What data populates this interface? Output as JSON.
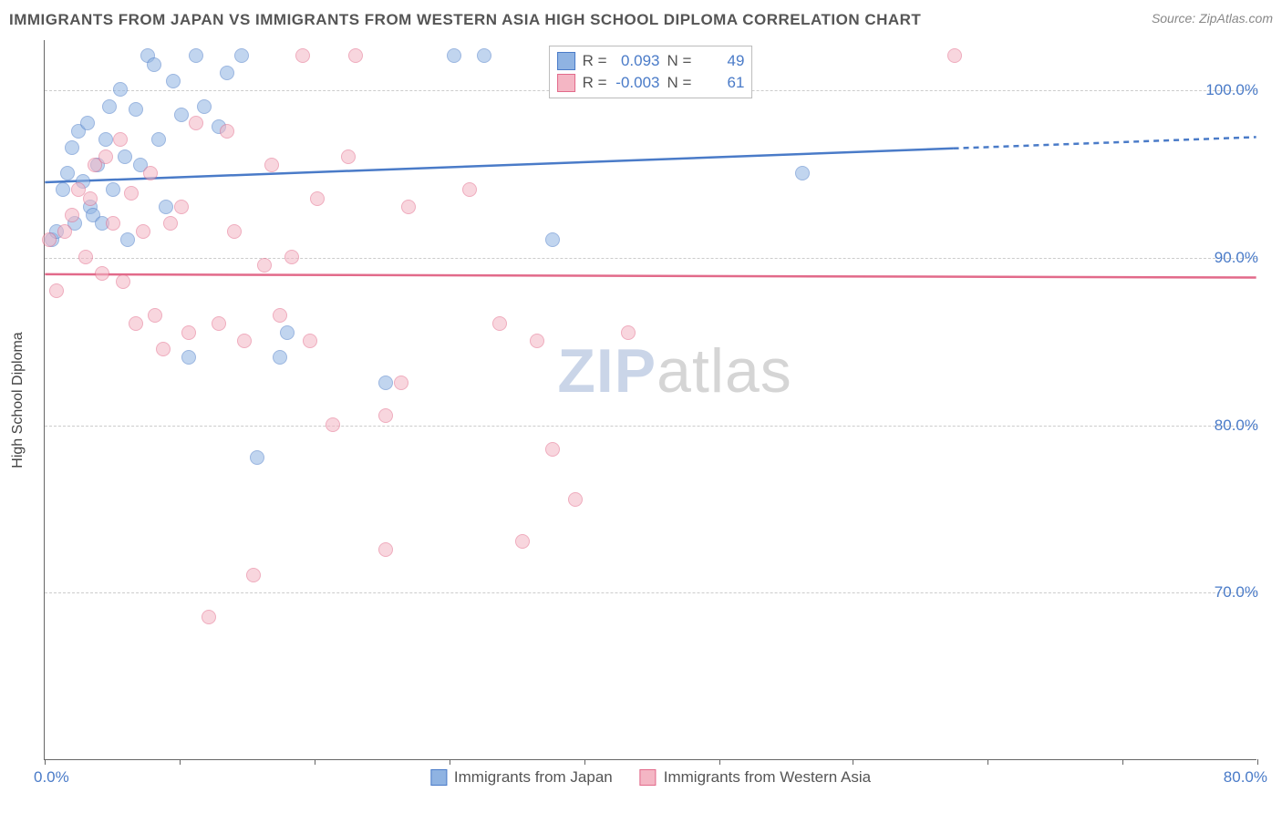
{
  "title": "IMMIGRANTS FROM JAPAN VS IMMIGRANTS FROM WESTERN ASIA HIGH SCHOOL DIPLOMA CORRELATION CHART",
  "source_prefix": "Source: ",
  "source_name": "ZipAtlas.com",
  "watermark_a": "ZIP",
  "watermark_b": "atlas",
  "y_axis_title": "High School Diploma",
  "chart": {
    "type": "scatter",
    "xlim": [
      0,
      80
    ],
    "ylim": [
      60,
      103
    ],
    "x_ticks": [
      0,
      8.9,
      17.8,
      26.7,
      35.6,
      44.5,
      53.3,
      62.2,
      71.1,
      80
    ],
    "x_tick_labels_shown": {
      "0": "0.0%",
      "80": "80.0%"
    },
    "y_ticks": [
      70,
      80,
      90,
      100
    ],
    "y_tick_labels": [
      "70.0%",
      "80.0%",
      "90.0%",
      "100.0%"
    ],
    "grid_color": "#cccccc",
    "axis_color": "#666666",
    "background_color": "#ffffff",
    "tick_label_color": "#4a7bc8",
    "tick_label_fontsize": 17,
    "axis_title_fontsize": 16,
    "marker_radius": 8,
    "marker_opacity": 0.55,
    "series": [
      {
        "id": "japan",
        "label": "Immigrants from Japan",
        "fill_color": "#8fb3e2",
        "stroke_color": "#4a7bc8",
        "r_value": "0.093",
        "n_value": "49",
        "trend": {
          "y_at_xmin": 94.5,
          "y_at_xmax": 97.2,
          "solid_until_x": 60,
          "line_width": 2.5
        },
        "points": [
          [
            0.5,
            91
          ],
          [
            0.8,
            91.5
          ],
          [
            1.2,
            94
          ],
          [
            1.5,
            95
          ],
          [
            1.8,
            96.5
          ],
          [
            2.0,
            92
          ],
          [
            2.2,
            97.5
          ],
          [
            2.5,
            94.5
          ],
          [
            2.8,
            98
          ],
          [
            3.0,
            93
          ],
          [
            3.2,
            92.5
          ],
          [
            3.5,
            95.5
          ],
          [
            3.8,
            92
          ],
          [
            4.0,
            97
          ],
          [
            4.3,
            99
          ],
          [
            4.5,
            94
          ],
          [
            5.0,
            100
          ],
          [
            5.3,
            96
          ],
          [
            5.5,
            91
          ],
          [
            6.0,
            98.8
          ],
          [
            6.3,
            95.5
          ],
          [
            6.8,
            102
          ],
          [
            7.2,
            101.5
          ],
          [
            7.5,
            97
          ],
          [
            8.0,
            93
          ],
          [
            8.5,
            100.5
          ],
          [
            9.0,
            98.5
          ],
          [
            9.5,
            84
          ],
          [
            10.0,
            102
          ],
          [
            10.5,
            99
          ],
          [
            11.5,
            97.8
          ],
          [
            12.0,
            101
          ],
          [
            13.0,
            102
          ],
          [
            15.5,
            84
          ],
          [
            16.0,
            85.5
          ],
          [
            14.0,
            78
          ],
          [
            22.5,
            82.5
          ],
          [
            27.0,
            102
          ],
          [
            29.0,
            102
          ],
          [
            33.5,
            91
          ],
          [
            35.0,
            102
          ],
          [
            38.0,
            102
          ],
          [
            42.5,
            102
          ],
          [
            50.0,
            95
          ]
        ]
      },
      {
        "id": "western-asia",
        "label": "Immigrants from Western Asia",
        "fill_color": "#f4b6c4",
        "stroke_color": "#e26a8a",
        "r_value": "-0.003",
        "n_value": "61",
        "trend": {
          "y_at_xmin": 89.0,
          "y_at_xmax": 88.8,
          "solid_until_x": 80,
          "line_width": 2.5
        },
        "points": [
          [
            0.3,
            91
          ],
          [
            0.8,
            88
          ],
          [
            1.3,
            91.5
          ],
          [
            1.8,
            92.5
          ],
          [
            2.2,
            94
          ],
          [
            2.7,
            90
          ],
          [
            3.0,
            93.5
          ],
          [
            3.3,
            95.5
          ],
          [
            3.8,
            89
          ],
          [
            4.0,
            96
          ],
          [
            4.5,
            92
          ],
          [
            5.0,
            97
          ],
          [
            5.2,
            88.5
          ],
          [
            5.7,
            93.8
          ],
          [
            6.0,
            86
          ],
          [
            6.5,
            91.5
          ],
          [
            7.0,
            95
          ],
          [
            7.3,
            86.5
          ],
          [
            7.8,
            84.5
          ],
          [
            8.3,
            92
          ],
          [
            9.0,
            93
          ],
          [
            9.5,
            85.5
          ],
          [
            10.0,
            98
          ],
          [
            10.8,
            68.5
          ],
          [
            11.5,
            86
          ],
          [
            12.0,
            97.5
          ],
          [
            12.5,
            91.5
          ],
          [
            13.2,
            85
          ],
          [
            13.8,
            71
          ],
          [
            14.5,
            89.5
          ],
          [
            15.0,
            95.5
          ],
          [
            15.5,
            86.5
          ],
          [
            16.3,
            90
          ],
          [
            17.0,
            102
          ],
          [
            17.5,
            85
          ],
          [
            18.0,
            93.5
          ],
          [
            19.0,
            80
          ],
          [
            20.0,
            96
          ],
          [
            20.5,
            102
          ],
          [
            22.5,
            72.5
          ],
          [
            22.5,
            80.5
          ],
          [
            23.5,
            82.5
          ],
          [
            24.0,
            93
          ],
          [
            28.0,
            94
          ],
          [
            30.0,
            86
          ],
          [
            31.5,
            73
          ],
          [
            32.5,
            85
          ],
          [
            33.5,
            78.5
          ],
          [
            35.0,
            75.5
          ],
          [
            38.5,
            85.5
          ],
          [
            42.5,
            101.8
          ],
          [
            60.0,
            102
          ]
        ]
      }
    ]
  },
  "legend_top_labels": {
    "r_prefix": "R =",
    "n_prefix": "N ="
  }
}
